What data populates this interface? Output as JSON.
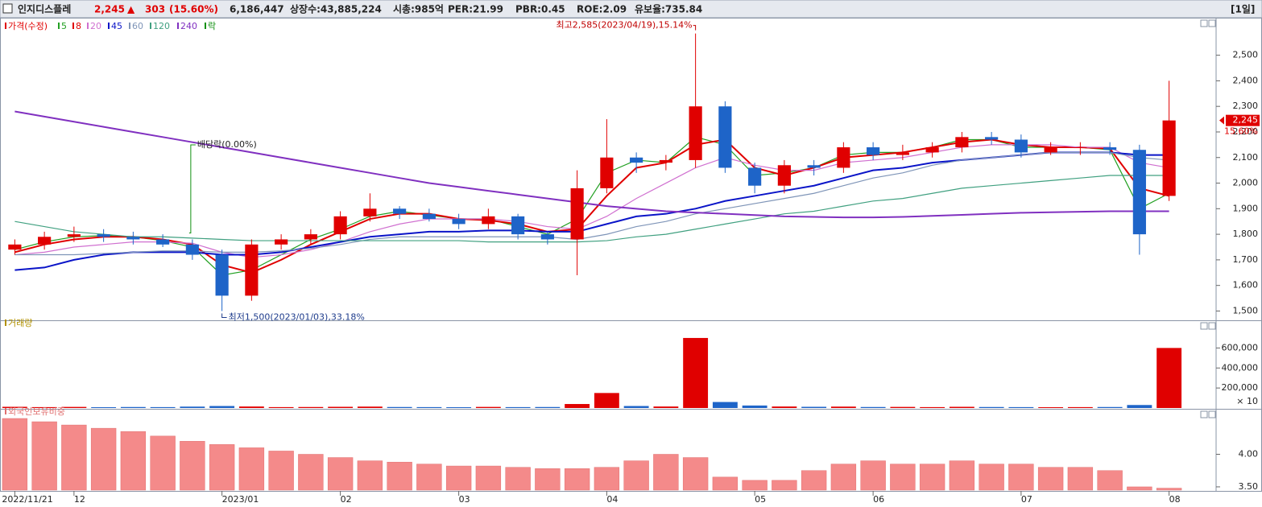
{
  "header": {
    "name": "인지디스플레",
    "price": "2,245",
    "arrow": "▲",
    "change": "303",
    "change_pct": "(15.60%)",
    "volume": "6,186,447",
    "listed": "상장수:43,885,224",
    "cap": "시총:985억",
    "per": "PER:21.99",
    "pbr": "PBR:0.45",
    "roe": "ROE:2.09",
    "reserve": "유보율:735.84",
    "period": "[1일]"
  },
  "chart_data": [
    {
      "type": "candlestick",
      "price_label": "가격(수정)",
      "price_color": "#e00000",
      "ex_label": "락",
      "ex_color": "#109010",
      "categories": [
        "2022/11/21",
        null,
        "12",
        null,
        null,
        null,
        null,
        "2023/01",
        null,
        null,
        null,
        "02",
        null,
        null,
        null,
        "03",
        null,
        null,
        null,
        null,
        "04",
        null,
        null,
        null,
        null,
        "05",
        null,
        null,
        null,
        "06",
        null,
        null,
        null,
        null,
        "07",
        null,
        null,
        null,
        null,
        "08"
      ],
      "open": [
        1740,
        1760,
        1790,
        1800,
        1790,
        1780,
        1760,
        1720,
        1560,
        1760,
        1780,
        1800,
        1870,
        1900,
        1880,
        1860,
        1840,
        1870,
        1800,
        1780,
        1980,
        2100,
        2080,
        2090,
        2300,
        2060,
        1990,
        2070,
        2060,
        2140,
        2110,
        2120,
        2140,
        2180,
        2170,
        2120,
        2140,
        2140,
        2130,
        1950
      ],
      "high": [
        1780,
        1810,
        1830,
        1820,
        1810,
        1800,
        1780,
        1740,
        1780,
        1800,
        1820,
        1890,
        1960,
        1910,
        1900,
        1880,
        1900,
        1880,
        1810,
        2050,
        2250,
        2120,
        2110,
        2585,
        2320,
        2080,
        2090,
        2090,
        2160,
        2160,
        2150,
        2160,
        2200,
        2200,
        2190,
        2160,
        2160,
        2160,
        2150,
        2400
      ],
      "low": [
        1720,
        1740,
        1770,
        1770,
        1760,
        1750,
        1700,
        1500,
        1540,
        1740,
        1760,
        1780,
        1850,
        1860,
        1850,
        1820,
        1820,
        1780,
        1760,
        1640,
        1960,
        2040,
        2050,
        2060,
        2040,
        1960,
        1960,
        2030,
        2040,
        2090,
        2090,
        2100,
        2120,
        2150,
        2100,
        2110,
        2110,
        2110,
        1720,
        1930
      ],
      "close": [
        1760,
        1790,
        1800,
        1790,
        1780,
        1760,
        1720,
        1560,
        1760,
        1780,
        1800,
        1870,
        1900,
        1880,
        1860,
        1840,
        1870,
        1800,
        1780,
        1980,
        2100,
        2080,
        2090,
        2300,
        2060,
        1990,
        2070,
        2060,
        2140,
        2110,
        2120,
        2140,
        2180,
        2170,
        2120,
        2140,
        2140,
        2130,
        1800,
        2245
      ],
      "up_color": "#e00000",
      "down_color": "#1e64c8",
      "series": [
        {
          "name": "5",
          "color": "#22a022",
          "values": [
            1740,
            1770,
            1790,
            1795,
            1790,
            1775,
            1750,
            1640,
            1660,
            1720,
            1780,
            1820,
            1870,
            1890,
            1875,
            1860,
            1860,
            1830,
            1800,
            1860,
            2040,
            2090,
            2080,
            2180,
            2150,
            2030,
            2040,
            2060,
            2110,
            2120,
            2120,
            2140,
            2170,
            2170,
            2140,
            2140,
            2140,
            2130,
            1900,
            1960
          ]
        },
        {
          "name": "8",
          "color": "#e00000",
          "values": [
            1730,
            1760,
            1780,
            1790,
            1790,
            1780,
            1760,
            1680,
            1650,
            1700,
            1760,
            1810,
            1860,
            1880,
            1880,
            1860,
            1855,
            1840,
            1810,
            1820,
            1950,
            2060,
            2080,
            2150,
            2170,
            2060,
            2030,
            2060,
            2100,
            2110,
            2120,
            2140,
            2160,
            2170,
            2150,
            2140,
            2140,
            2135,
            1980,
            1950
          ]
        },
        {
          "name": "20",
          "color": "#d070d0",
          "values": [
            1720,
            1730,
            1750,
            1760,
            1770,
            1770,
            1765,
            1730,
            1710,
            1720,
            1740,
            1770,
            1810,
            1840,
            1860,
            1860,
            1860,
            1850,
            1830,
            1820,
            1870,
            1940,
            2000,
            2060,
            2100,
            2070,
            2050,
            2050,
            2080,
            2090,
            2100,
            2120,
            2140,
            2150,
            2150,
            2150,
            2140,
            2140,
            2080,
            2060
          ]
        },
        {
          "name": "45",
          "color": "#0a14c8",
          "values": [
            1660,
            1670,
            1700,
            1720,
            1730,
            1730,
            1730,
            1720,
            1720,
            1730,
            1750,
            1770,
            1790,
            1800,
            1810,
            1810,
            1815,
            1815,
            1810,
            1810,
            1840,
            1870,
            1880,
            1900,
            1930,
            1950,
            1970,
            1990,
            2020,
            2050,
            2060,
            2080,
            2090,
            2100,
            2110,
            2120,
            2120,
            2120,
            2110,
            2110
          ]
        },
        {
          "name": "60",
          "color": "#7f95b8",
          "values": [
            1720,
            1720,
            1720,
            1725,
            1730,
            1735,
            1735,
            1730,
            1730,
            1735,
            1745,
            1760,
            1780,
            1790,
            1790,
            1790,
            1790,
            1790,
            1790,
            1780,
            1800,
            1830,
            1850,
            1880,
            1900,
            1920,
            1940,
            1960,
            1990,
            2020,
            2040,
            2070,
            2090,
            2100,
            2110,
            2120,
            2120,
            2120,
            2100,
            2090
          ]
        },
        {
          "name": "120",
          "color": "#40a080",
          "values": [
            1850,
            1830,
            1810,
            1800,
            1790,
            1790,
            1785,
            1780,
            1775,
            1775,
            1775,
            1775,
            1775,
            1775,
            1775,
            1775,
            1770,
            1770,
            1770,
            1770,
            1775,
            1790,
            1800,
            1820,
            1840,
            1860,
            1880,
            1890,
            1910,
            1930,
            1940,
            1960,
            1980,
            1990,
            2000,
            2010,
            2020,
            2030,
            2030,
            2030
          ]
        },
        {
          "name": "240",
          "color": "#8030c0",
          "values": [
            2280,
            2260,
            2240,
            2220,
            2200,
            2180,
            2160,
            2140,
            2120,
            2100,
            2080,
            2060,
            2040,
            2020,
            2000,
            1985,
            1970,
            1955,
            1940,
            1925,
            1910,
            1900,
            1890,
            1885,
            1880,
            1875,
            1870,
            1868,
            1866,
            1866,
            1868,
            1872,
            1876,
            1880,
            1884,
            1886,
            1888,
            1890,
            1890,
            1890
          ]
        }
      ],
      "ylim": [
        1470,
        2590
      ],
      "yticks": [
        {
          "value": 1500,
          "label": "1,500"
        },
        {
          "value": 1600,
          "label": "1,600"
        },
        {
          "value": 1700,
          "label": "1,700"
        },
        {
          "value": 1800,
          "label": "1,800"
        },
        {
          "value": 1900,
          "label": "1,900"
        },
        {
          "value": 2000,
          "label": "2,000"
        },
        {
          "value": 2100,
          "label": "2,100"
        },
        {
          "value": 2200,
          "label": "2,200"
        },
        {
          "value": 2300,
          "label": "2,300"
        },
        {
          "value": 2400,
          "label": "2,400"
        },
        {
          "value": 2500,
          "label": "2,500"
        }
      ],
      "high_label": "최고2,585(2023/04/19),15.14%",
      "low_label": "최저1,500(2023/01/03),33.18%",
      "ex_dividend_label": "배당락(0.00%)",
      "last_price_label": "2,245",
      "last_pct_label": "15.60%"
    },
    {
      "type": "bar",
      "title": "거래량",
      "title_color": "#b09000",
      "values": [
        12000,
        9000,
        11000,
        8000,
        10000,
        9000,
        14000,
        20000,
        15000,
        9000,
        10000,
        12000,
        14000,
        10000,
        9000,
        8000,
        11000,
        9000,
        10000,
        40000,
        150000,
        20000,
        15000,
        700000,
        60000,
        25000,
        15000,
        12000,
        14000,
        10000,
        11000,
        9000,
        12000,
        10000,
        9000,
        8000,
        9000,
        10000,
        30000,
        600000
      ],
      "ylim": [
        0,
        780000
      ],
      "yticks": [
        {
          "value": 200000,
          "label": "200,000"
        },
        {
          "value": 400000,
          "label": "400,000"
        },
        {
          "value": 600000,
          "label": "600,000"
        }
      ],
      "unit": "× 10"
    },
    {
      "type": "bar",
      "title": "외국인보유비중",
      "title_color": "#e07070",
      "color": "#f48a8a",
      "values": [
        4.55,
        4.5,
        4.45,
        4.4,
        4.35,
        4.28,
        4.2,
        4.15,
        4.1,
        4.05,
        4.0,
        3.95,
        3.9,
        3.88,
        3.85,
        3.82,
        3.82,
        3.8,
        3.78,
        3.78,
        3.8,
        3.9,
        4.0,
        3.95,
        3.65,
        3.6,
        3.6,
        3.75,
        3.85,
        3.9,
        3.85,
        3.85,
        3.9,
        3.85,
        3.85,
        3.8,
        3.8,
        3.75,
        3.5,
        3.48
      ],
      "ylim": [
        3.45,
        4.55
      ],
      "yticks": [
        {
          "value": 4.0,
          "label": "4.00"
        },
        {
          "value": 3.5,
          "label": "3.50"
        }
      ]
    }
  ]
}
